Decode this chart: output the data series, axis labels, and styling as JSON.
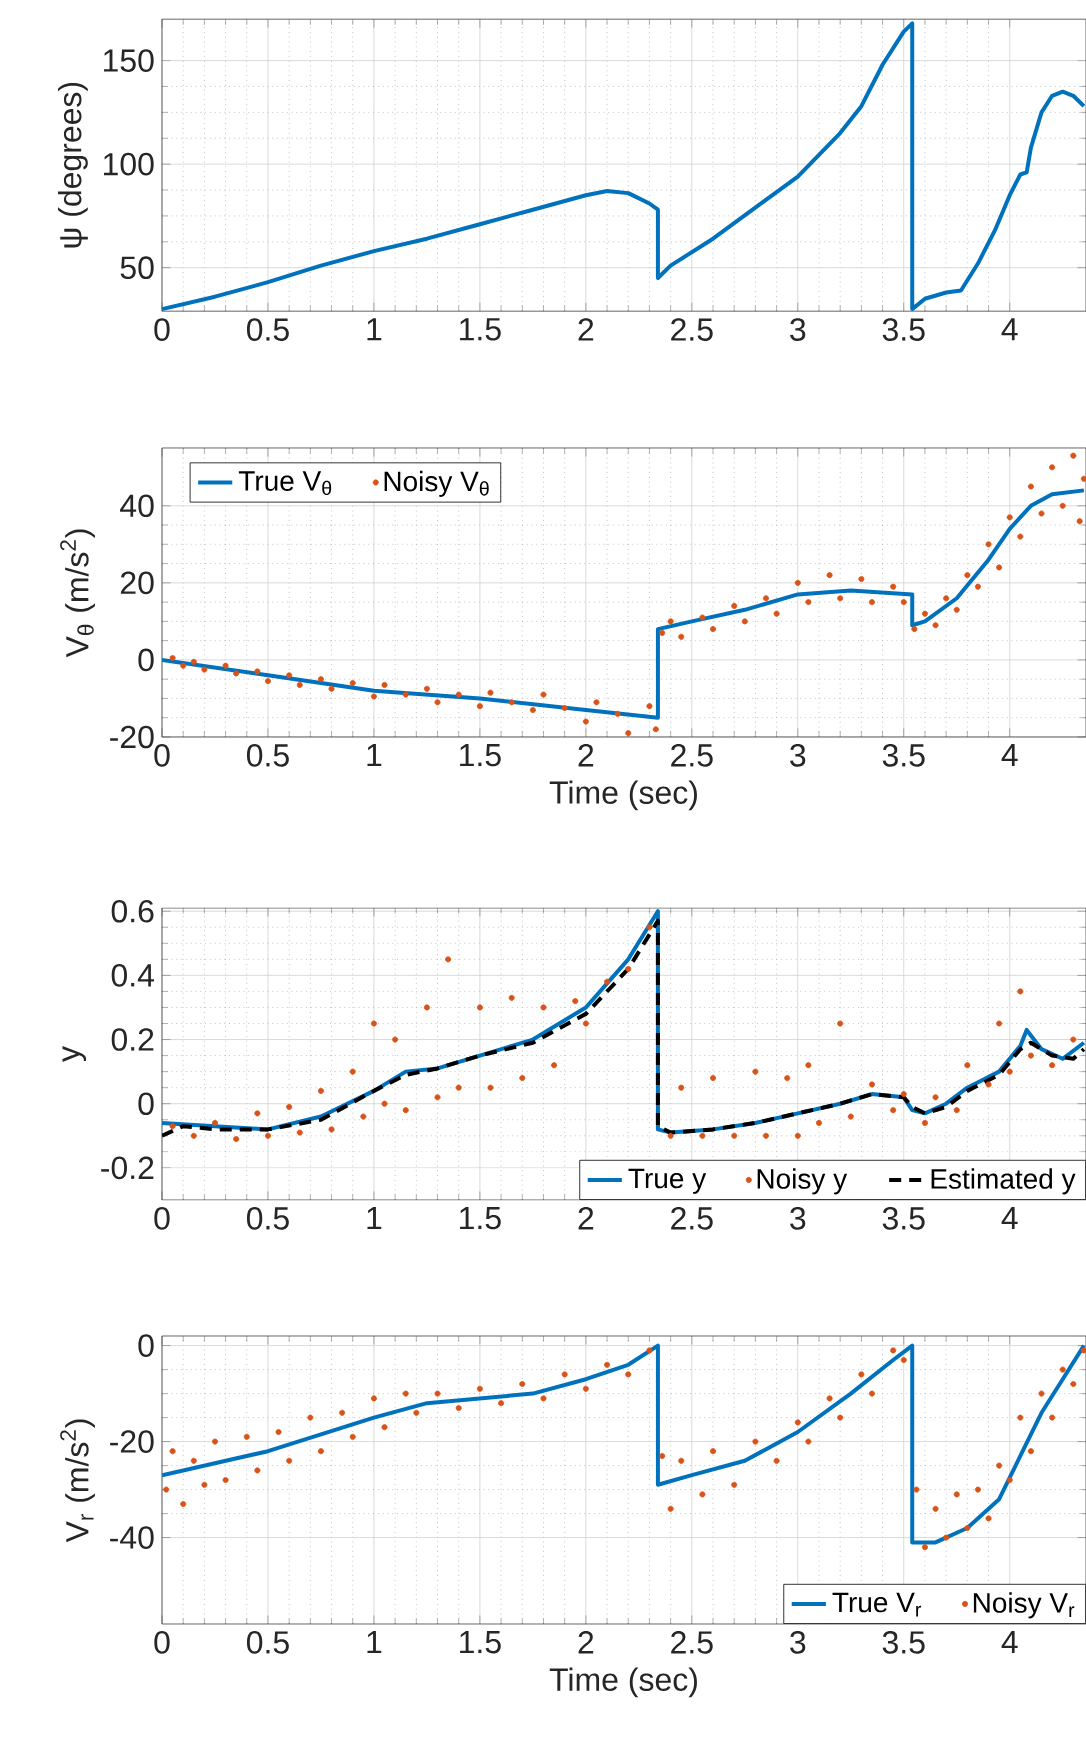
{
  "chart_data": [
    {
      "type": "line",
      "ylabel": "ψ (degrees)",
      "xlim": [
        0,
        4.36
      ],
      "ylim": [
        29,
        170
      ],
      "xticks": [
        0,
        0.5,
        1,
        1.5,
        2,
        2.5,
        3,
        3.5,
        4
      ],
      "yticks": [
        50,
        100,
        150
      ],
      "grid": true,
      "series": [
        {
          "color": "#0072bd",
          "x": [
            0,
            0.25,
            0.5,
            0.75,
            1,
            1.25,
            1.5,
            1.75,
            2,
            2.1,
            2.2,
            2.3,
            2.34,
            2.34,
            2.4,
            2.6,
            2.8,
            3.0,
            3.2,
            3.3,
            3.4,
            3.5,
            3.54,
            3.54,
            3.6,
            3.7,
            3.77,
            3.85,
            3.93,
            4.0,
            4.05,
            4.08,
            4.1,
            4.15,
            4.2,
            4.25,
            4.3,
            4.35
          ],
          "values": [
            30,
            36,
            43,
            51,
            58,
            64,
            71,
            78,
            85,
            87,
            86,
            81,
            78,
            45,
            51,
            64,
            79,
            94,
            115,
            128,
            148,
            164,
            168,
            30,
            35,
            38,
            39,
            52,
            68,
            85,
            95,
            96,
            108,
            125,
            133,
            135,
            133,
            128
          ]
        }
      ]
    },
    {
      "type": "line",
      "xlabel": "Time (sec)",
      "ylabel": "V$_{θ}$ (m/s$^{2}$)",
      "xlim": [
        0,
        4.36
      ],
      "ylim": [
        -20,
        55
      ],
      "xticks": [
        0,
        0.5,
        1,
        1.5,
        2,
        2.5,
        3,
        3.5,
        4
      ],
      "yticks": [
        -20,
        0,
        20,
        40
      ],
      "grid": true,
      "legend": "top left",
      "series": [
        {
          "name": "True V$_{θ}$",
          "color": "#0072bd",
          "x": [
            0,
            0.5,
            1,
            1.5,
            2,
            2.34,
            2.34,
            2.5,
            2.75,
            3,
            3.25,
            3.54,
            3.54,
            3.6,
            3.75,
            3.9,
            4.0,
            4.1,
            4.2,
            4.35
          ],
          "values": [
            0,
            -4,
            -8,
            -10,
            -13,
            -15,
            8,
            10,
            13,
            17,
            18,
            17,
            9,
            10,
            16,
            26,
            34,
            40,
            43,
            44
          ]
        },
        {
          "name": "Noisy V$_{θ}$",
          "type": "scatter",
          "color": "#d95319",
          "x": [
            0.05,
            0.1,
            0.15,
            0.2,
            0.3,
            0.35,
            0.45,
            0.5,
            0.6,
            0.65,
            0.75,
            0.8,
            0.9,
            1,
            1.05,
            1.15,
            1.25,
            1.3,
            1.4,
            1.5,
            1.55,
            1.65,
            1.75,
            1.8,
            1.9,
            2,
            2.05,
            2.15,
            2.2,
            2.3,
            2.33,
            2.36,
            2.4,
            2.45,
            2.55,
            2.6,
            2.7,
            2.75,
            2.85,
            2.9,
            3,
            3.05,
            3.15,
            3.2,
            3.3,
            3.35,
            3.45,
            3.5,
            3.55,
            3.6,
            3.65,
            3.7,
            3.75,
            3.8,
            3.85,
            3.9,
            3.95,
            4,
            4.05,
            4.1,
            4.15,
            4.2,
            4.25,
            4.3,
            4.33,
            4.35
          ],
          "values": [
            0.5,
            -1.5,
            -0.5,
            -2.5,
            -1.5,
            -3.5,
            -3,
            -5.5,
            -4,
            -6.5,
            -5,
            -7.5,
            -6,
            -9.5,
            -6.5,
            -9,
            -7.5,
            -11,
            -9,
            -12,
            -8.5,
            -11,
            -13,
            -9,
            -12.5,
            -16,
            -11,
            -14,
            -19,
            -12,
            -18,
            7,
            10,
            6,
            11,
            8,
            14,
            10,
            16,
            12,
            20,
            15,
            22,
            16,
            21,
            15,
            19,
            15,
            8,
            12,
            9,
            16,
            13,
            22,
            19,
            30,
            24,
            37,
            32,
            45,
            38,
            50,
            40,
            53,
            36,
            47
          ]
        }
      ]
    },
    {
      "type": "line",
      "ylabel": "y",
      "xlim": [
        0,
        4.36
      ],
      "ylim": [
        -0.3,
        0.61
      ],
      "xticks": [
        0,
        0.5,
        1,
        1.5,
        2,
        2.5,
        3,
        3.5,
        4
      ],
      "yticks": [
        -0.2,
        0,
        0.2,
        0.4,
        0.6
      ],
      "grid": true,
      "legend": "bottom right",
      "series": [
        {
          "name": "True y",
          "color": "#0072bd",
          "x": [
            0,
            0.25,
            0.5,
            0.75,
            1,
            1.15,
            1.3,
            1.5,
            1.75,
            2,
            2.2,
            2.34,
            2.34,
            2.4,
            2.6,
            2.8,
            3,
            3.2,
            3.35,
            3.5,
            3.54,
            3.6,
            3.7,
            3.8,
            3.95,
            4.05,
            4.08,
            4.15,
            4.25,
            4.35
          ],
          "values": [
            -0.06,
            -0.07,
            -0.08,
            -0.04,
            0.04,
            0.1,
            0.11,
            0.15,
            0.2,
            0.3,
            0.45,
            0.6,
            -0.08,
            -0.09,
            -0.08,
            -0.06,
            -0.03,
            0,
            0.03,
            0.02,
            -0.02,
            -0.03,
            0,
            0.05,
            0.1,
            0.18,
            0.23,
            0.17,
            0.14,
            0.19
          ]
        },
        {
          "name": "Noisy y",
          "type": "scatter",
          "color": "#d95319",
          "x": [
            0.05,
            0.15,
            0.25,
            0.35,
            0.45,
            0.5,
            0.6,
            0.65,
            0.75,
            0.8,
            0.9,
            0.95,
            1.0,
            1.05,
            1.1,
            1.15,
            1.25,
            1.3,
            1.35,
            1.4,
            1.5,
            1.55,
            1.65,
            1.7,
            1.8,
            1.85,
            1.95,
            2.0,
            2.1,
            2.2,
            2.3,
            2.4,
            2.45,
            2.55,
            2.6,
            2.7,
            2.8,
            2.85,
            2.95,
            3.0,
            3.05,
            3.1,
            3.2,
            3.25,
            3.35,
            3.45,
            3.5,
            3.6,
            3.65,
            3.75,
            3.8,
            3.9,
            3.95,
            4.0,
            4.05,
            4.1,
            4.2,
            4.3
          ],
          "values": [
            -0.07,
            -0.1,
            -0.06,
            -0.11,
            -0.03,
            -0.1,
            -0.01,
            -0.09,
            0.04,
            -0.08,
            0.1,
            -0.04,
            0.25,
            0,
            0.2,
            -0.02,
            0.3,
            0.02,
            0.45,
            0.05,
            0.3,
            0.05,
            0.33,
            0.08,
            0.3,
            0.12,
            0.32,
            0.25,
            0.38,
            0.42,
            0.55,
            -0.1,
            0.05,
            -0.1,
            0.08,
            -0.1,
            0.1,
            -0.1,
            0.08,
            -0.1,
            0.12,
            -0.06,
            0.25,
            -0.04,
            0.06,
            -0.02,
            0.03,
            -0.06,
            0.02,
            -0.02,
            0.12,
            0.06,
            0.25,
            0.1,
            0.35,
            0.15,
            0.12,
            0.2
          ]
        },
        {
          "name": "Estimated y",
          "color": "#000000",
          "line_style": "dashed",
          "x": [
            0,
            0.1,
            0.25,
            0.5,
            0.75,
            1,
            1.15,
            1.3,
            1.5,
            1.75,
            2,
            2.2,
            2.34,
            2.34,
            2.4,
            2.6,
            2.8,
            3,
            3.2,
            3.35,
            3.5,
            3.54,
            3.6,
            3.7,
            3.8,
            3.95,
            4.05,
            4.1,
            4.2,
            4.3,
            4.35
          ],
          "values": [
            -0.1,
            -0.07,
            -0.08,
            -0.08,
            -0.05,
            0.04,
            0.09,
            0.11,
            0.15,
            0.19,
            0.28,
            0.42,
            0.57,
            -0.07,
            -0.09,
            -0.08,
            -0.06,
            -0.03,
            0,
            0.03,
            0.02,
            -0.01,
            -0.03,
            -0.01,
            0.04,
            0.09,
            0.17,
            0.19,
            0.15,
            0.14,
            0.17
          ]
        }
      ]
    },
    {
      "type": "line",
      "xlabel": "Time (sec)",
      "ylabel": "V$_{r}$ (m/s$^{2}$)",
      "xlim": [
        0,
        4.36
      ],
      "ylim": [
        -58,
        2
      ],
      "xticks": [
        0,
        0.5,
        1,
        1.5,
        2,
        2.5,
        3,
        3.5,
        4
      ],
      "yticks": [
        -40,
        -20,
        0
      ],
      "grid": true,
      "legend": "bottom right",
      "series": [
        {
          "name": "True V$_{r}$",
          "color": "#0072bd",
          "x": [
            0,
            0.5,
            1,
            1.25,
            1.5,
            1.75,
            2,
            2.2,
            2.34,
            2.34,
            2.5,
            2.75,
            3,
            3.25,
            3.45,
            3.54,
            3.54,
            3.65,
            3.8,
            3.95,
            4.05,
            4.15,
            4.25,
            4.35
          ],
          "values": [
            -27,
            -22,
            -15,
            -12,
            -11,
            -10,
            -7,
            -4,
            0,
            -29,
            -27,
            -24,
            -18,
            -10,
            -3,
            0,
            -41,
            -41,
            -38,
            -32,
            -23,
            -14,
            -7,
            0
          ]
        },
        {
          "name": "Noisy V$_{r}$",
          "type": "scatter",
          "color": "#d95319",
          "x": [
            0.02,
            0.05,
            0.1,
            0.15,
            0.2,
            0.25,
            0.3,
            0.4,
            0.45,
            0.55,
            0.6,
            0.7,
            0.75,
            0.85,
            0.9,
            1,
            1.05,
            1.15,
            1.2,
            1.3,
            1.4,
            1.5,
            1.6,
            1.7,
            1.8,
            1.9,
            2,
            2.1,
            2.2,
            2.3,
            2.36,
            2.4,
            2.45,
            2.55,
            2.6,
            2.7,
            2.8,
            2.9,
            3,
            3.05,
            3.15,
            3.2,
            3.3,
            3.35,
            3.45,
            3.5,
            3.56,
            3.6,
            3.65,
            3.7,
            3.75,
            3.8,
            3.85,
            3.9,
            3.95,
            4,
            4.05,
            4.1,
            4.15,
            4.2,
            4.25,
            4.3,
            4.35
          ],
          "values": [
            -30,
            -22,
            -33,
            -24,
            -29,
            -20,
            -28,
            -19,
            -26,
            -18,
            -24,
            -15,
            -22,
            -14,
            -19,
            -11,
            -17,
            -10,
            -14,
            -10,
            -13,
            -9,
            -12,
            -8,
            -11,
            -6,
            -9,
            -4,
            -6,
            -1,
            -23,
            -34,
            -24,
            -31,
            -22,
            -29,
            -20,
            -24,
            -16,
            -20,
            -11,
            -15,
            -6,
            -10,
            -1,
            -3,
            -30,
            -42,
            -34,
            -40,
            -31,
            -38,
            -30,
            -36,
            -25,
            -28,
            -15,
            -22,
            -10,
            -15,
            -5,
            -8,
            -1
          ]
        }
      ]
    }
  ]
}
